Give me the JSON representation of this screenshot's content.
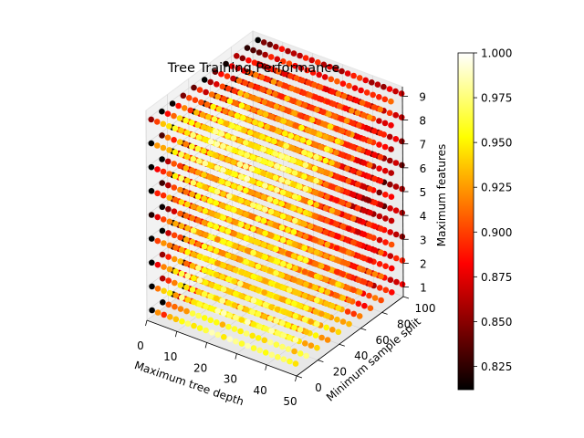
{
  "chart_data": {
    "type": "scatter3d",
    "title": "Tree Training Performance",
    "xlabel": "Maximum tree depth",
    "ylabel": "Minimum sample split",
    "zlabel": "Maximum features",
    "xlim": [
      0,
      50
    ],
    "ylim": [
      0,
      100
    ],
    "zlim": [
      1,
      9
    ],
    "x_ticks": [
      "0",
      "10",
      "20",
      "30",
      "40",
      "50"
    ],
    "y_ticks": [
      "0",
      "20",
      "40",
      "60",
      "80",
      "100"
    ],
    "z_ticks": [
      "1",
      "2",
      "3",
      "4",
      "5",
      "6",
      "7",
      "8",
      "9"
    ],
    "grid_x": [
      1,
      3,
      5,
      7,
      9,
      11,
      13,
      15,
      17,
      19,
      21,
      23,
      25,
      27,
      29,
      31,
      33,
      35,
      37,
      39,
      41,
      43,
      45,
      47,
      49
    ],
    "grid_y": [
      2,
      12,
      22,
      32,
      42,
      52,
      62,
      72,
      82,
      92,
      102
    ],
    "grid_z": [
      1,
      2,
      3,
      4,
      5,
      6,
      7,
      8,
      9
    ],
    "value_range": [
      0.812,
      1.0
    ],
    "colormap": "hot",
    "colorbar_ticks": [
      "0.825",
      "0.850",
      "0.875",
      "0.900",
      "0.925",
      "0.950",
      "0.975",
      "1.000"
    ],
    "colorbar_tick_values": [
      0.825,
      0.85,
      0.875,
      0.9,
      0.925,
      0.95,
      0.975,
      1.0
    ],
    "grid": true
  }
}
